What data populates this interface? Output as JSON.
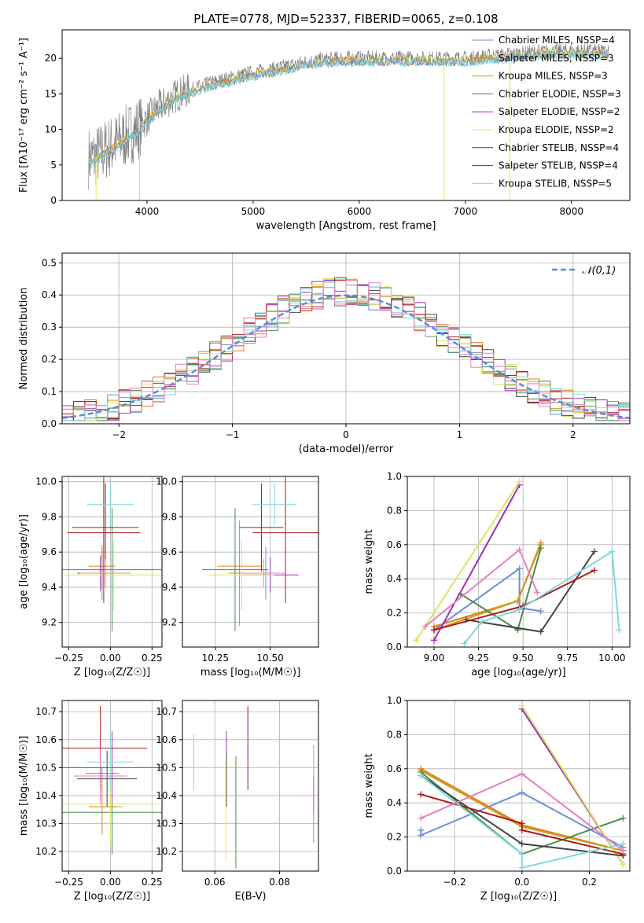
{
  "figure": {
    "title": "PLATE=0778, MJD=52337, FIBERID=0065, z=0.108"
  },
  "colors": {
    "Chabrier MILES": "#6b8ed6",
    "Salpeter MILES": "#e67e22",
    "Kroupa MILES": "#c8a01e",
    "Chabrier ELODIE": "#4a8a4a",
    "Salpeter ELODIE": "#9b30c0",
    "Kroupa ELODIE": "#d9e85a",
    "Chabrier STELIB": "#444444",
    "Salpeter STELIB": "#b01818",
    "Kroupa STELIB": "#7fd8dc",
    "data": "#808080",
    "pink": "#e77fbf",
    "gauss": "#5b8bd6"
  },
  "chart_data": [
    {
      "id": "spectrum",
      "type": "line",
      "xlabel": "wavelength [Angstrom, rest frame]",
      "ylabel": "Flux [fλ10⁻¹⁷ erg cm⁻² s⁻¹ A⁻¹]",
      "xlim": [
        3200,
        8550
      ],
      "ylim": [
        0,
        24
      ],
      "xticks": [
        "4000",
        "5000",
        "6000",
        "7000",
        "8000"
      ],
      "yticks": [
        "0",
        "5",
        "10",
        "15",
        "20"
      ],
      "legend": [
        "Chabrier MILES, NSSP=4",
        "Salpeter MILES, NSSP=3",
        "Kroupa MILES, NSSP=3",
        "Chabrier ELODIE, NSSP=3",
        "Salpeter ELODIE, NSSP=2",
        "Kroupa ELODIE, NSSP=2",
        "Chabrier STELIB, NSSP=4",
        "Salpeter STELIB, NSSP=4",
        "Kroupa STELIB, NSSP=5"
      ],
      "legend_placement": "right",
      "continuum": {
        "x": [
          3500,
          3700,
          3900,
          4100,
          4300,
          4600,
          5000,
          5200,
          5500,
          5800,
          6000,
          6300,
          6600,
          7000,
          7400,
          7800,
          8200,
          8350
        ],
        "y": [
          6,
          8,
          10,
          13,
          15,
          16.5,
          18,
          18.5,
          19.5,
          20,
          20,
          20,
          20,
          20,
          20.5,
          21,
          21,
          21
        ]
      }
    },
    {
      "id": "residuals",
      "type": "histogram",
      "xlabel": "(data-model)/error",
      "ylabel": "Normed distribution",
      "xlim": [
        -2.5,
        2.5
      ],
      "ylim": [
        0,
        0.53
      ],
      "xticks": [
        "−2",
        "−1",
        "0",
        "1",
        "2"
      ],
      "yticks": [
        "0.0",
        "0.1",
        "0.2",
        "0.3",
        "0.4",
        "0.5"
      ],
      "legend": [
        "𝒩(0,1)"
      ],
      "legend_placement": "top-right",
      "gaussian": {
        "mu": 0,
        "sigma": 1
      }
    },
    {
      "id": "age_vs_Z",
      "type": "errorbar",
      "xlabel": "Z [log₁₀(Z/Z☉)]",
      "ylabel": "age  [log₁₀(age/yr)]",
      "xlim": [
        -0.29,
        0.31
      ],
      "ylim": [
        9.06,
        10.03
      ],
      "xticks": [
        "−0.25",
        "0.00",
        "0.25"
      ],
      "yticks": [
        "9.2",
        "9.4",
        "9.6",
        "9.8",
        "10.0"
      ],
      "points": [
        {
          "model": "Chabrier MILES",
          "x": -0.05,
          "xerr": 0.1,
          "y": 9.48,
          "yerr": 0.15
        },
        {
          "model": "Salpeter MILES",
          "x": -0.05,
          "xerr": 0.08,
          "y": 9.52,
          "yerr": 0.12
        },
        {
          "model": "Kroupa MILES",
          "x": 0.01,
          "xerr": 0.06,
          "y": 9.48,
          "yerr": 0.3
        },
        {
          "model": "Chabrier ELODIE",
          "x": 0.01,
          "xerr": 0.3,
          "y": 9.5,
          "yerr": 0.35
        },
        {
          "model": "Salpeter ELODIE",
          "x": -0.06,
          "xerr": 0.14,
          "y": 9.48,
          "yerr": 0.1
        },
        {
          "model": "Kroupa ELODIE",
          "x": 0.02,
          "xerr": 0.3,
          "y": 9.47,
          "yerr": 0.2
        },
        {
          "model": "Chabrier STELIB",
          "x": -0.03,
          "xerr": 0.2,
          "y": 9.74,
          "yerr": 0.25
        },
        {
          "model": "Salpeter STELIB",
          "x": -0.04,
          "xerr": 0.22,
          "y": 9.71,
          "yerr": 0.4
        },
        {
          "model": "Kroupa STELIB",
          "x": 0.0,
          "xerr": 0.14,
          "y": 9.87,
          "yerr": 0.12
        },
        {
          "model": "pink",
          "x": -0.03,
          "xerr": 0.15,
          "y": 9.48,
          "yerr": 0.08
        }
      ]
    },
    {
      "id": "age_vs_mass",
      "type": "errorbar",
      "xlabel": "mass [log₁₀(M/M☉)]",
      "ylabel": "",
      "xlim": [
        10.1,
        10.72
      ],
      "ylim": [
        9.06,
        10.03
      ],
      "xticks": [
        "10.25",
        "10.50"
      ],
      "yticks": [
        "9.2",
        "9.4",
        "9.6",
        "9.8",
        "10.0"
      ],
      "points": [
        {
          "model": "Chabrier MILES",
          "x": 10.48,
          "xerr": 0.02,
          "y": 9.48,
          "yerr": 0.15
        },
        {
          "model": "Salpeter MILES",
          "x": 10.36,
          "xerr": 0.1,
          "y": 9.52,
          "yerr": 0.12
        },
        {
          "model": "Kroupa MILES",
          "x": 10.36,
          "xerr": 0.05,
          "y": 9.48,
          "yerr": 0.3
        },
        {
          "model": "Chabrier ELODIE",
          "x": 10.34,
          "xerr": 0.15,
          "y": 9.5,
          "yerr": 0.35
        },
        {
          "model": "Salpeter ELODIE",
          "x": 10.5,
          "xerr": 0.13,
          "y": 9.47,
          "yerr": 0.1
        },
        {
          "model": "Kroupa ELODIE",
          "x": 10.37,
          "xerr": 0.15,
          "y": 9.47,
          "yerr": 0.2
        },
        {
          "model": "Chabrier STELIB",
          "x": 10.46,
          "xerr": 0.1,
          "y": 9.74,
          "yerr": 0.25
        },
        {
          "model": "Salpeter STELIB",
          "x": 10.57,
          "xerr": 0.15,
          "y": 9.71,
          "yerr": 0.4
        },
        {
          "model": "Kroupa STELIB",
          "x": 10.52,
          "xerr": 0.1,
          "y": 9.87,
          "yerr": 0.12
        },
        {
          "model": "pink",
          "x": 10.47,
          "xerr": 0.1,
          "y": 9.48,
          "yerr": 0.08
        }
      ]
    },
    {
      "id": "weight_vs_age",
      "type": "line",
      "xlabel": "age  [log₁₀(age/yr)]",
      "ylabel": "mass weight",
      "xlim": [
        8.85,
        10.1
      ],
      "ylim": [
        0,
        1.0
      ],
      "xticks": [
        "9.00",
        "9.25",
        "9.50",
        "9.75",
        "10.00"
      ],
      "yticks": [
        "0.0",
        "0.2",
        "0.4",
        "0.6",
        "0.8",
        "1.0"
      ],
      "grid": true,
      "series": [
        {
          "model": "Chabrier MILES",
          "x": [
            9.0,
            9.48,
            9.48,
            9.6
          ],
          "y": [
            0.1,
            0.46,
            0.23,
            0.21
          ]
        },
        {
          "model": "Salpeter MILES",
          "x": [
            9.0,
            9.47,
            9.6
          ],
          "y": [
            0.12,
            0.27,
            0.61
          ]
        },
        {
          "model": "Kroupa MILES",
          "x": [
            9.0,
            9.47,
            9.6
          ],
          "y": [
            0.1,
            0.27,
            0.6
          ]
        },
        {
          "model": "Chabrier ELODIE",
          "x": [
            9.15,
            9.47,
            9.6
          ],
          "y": [
            0.31,
            0.1,
            0.58
          ]
        },
        {
          "model": "Salpeter ELODIE",
          "x": [
            9.0,
            9.48
          ],
          "y": [
            0.04,
            0.95
          ]
        },
        {
          "model": "Kroupa ELODIE",
          "x": [
            8.9,
            9.48
          ],
          "y": [
            0.04,
            0.97
          ]
        },
        {
          "model": "Chabrier STELIB",
          "x": [
            9.18,
            9.6,
            9.9
          ],
          "y": [
            0.16,
            0.09,
            0.56
          ]
        },
        {
          "model": "Salpeter STELIB",
          "x": [
            9.0,
            9.5,
            9.9
          ],
          "y": [
            0.1,
            0.24,
            0.45
          ]
        },
        {
          "model": "Kroupa STELIB",
          "x": [
            9.17,
            9.27,
            9.48,
            10.0,
            10.04
          ],
          "y": [
            0.02,
            0.15,
            0.22,
            0.56,
            0.1
          ]
        },
        {
          "model": "pink",
          "x": [
            8.95,
            9.48,
            9.58
          ],
          "y": [
            0.12,
            0.57,
            0.32
          ]
        }
      ]
    },
    {
      "id": "mass_vs_Z",
      "type": "errorbar",
      "xlabel": "Z [log₁₀(Z/Z☉)]",
      "ylabel": "mass [log₁₀(M/M☉)]",
      "xlim": [
        -0.29,
        0.31
      ],
      "ylim": [
        10.13,
        10.74
      ],
      "xticks": [
        "−0.25",
        "0.00",
        "0.25"
      ],
      "yticks": [
        "10.2",
        "10.3",
        "10.4",
        "10.5",
        "10.6",
        "10.7"
      ],
      "points": [
        {
          "model": "Chabrier MILES",
          "x": -0.05,
          "xerr": 0.1,
          "y": 10.48,
          "yerr": 0.02
        },
        {
          "model": "Salpeter MILES",
          "x": -0.05,
          "xerr": 0.08,
          "y": 10.36,
          "yerr": 0.1
        },
        {
          "model": "Kroupa MILES",
          "x": 0.01,
          "xerr": 0.06,
          "y": 10.36,
          "yerr": 0.05
        },
        {
          "model": "Chabrier ELODIE",
          "x": 0.01,
          "xerr": 0.3,
          "y": 10.34,
          "yerr": 0.15
        },
        {
          "model": "Salpeter ELODIE",
          "x": 0.01,
          "xerr": 0.3,
          "y": 10.5,
          "yerr": 0.13
        },
        {
          "model": "Kroupa ELODIE",
          "x": 0.0,
          "xerr": 0.3,
          "y": 10.37,
          "yerr": 0.15
        },
        {
          "model": "Chabrier STELIB",
          "x": -0.02,
          "xerr": 0.18,
          "y": 10.46,
          "yerr": 0.1
        },
        {
          "model": "Salpeter STELIB",
          "x": -0.06,
          "xerr": 0.28,
          "y": 10.57,
          "yerr": 0.15
        },
        {
          "model": "Kroupa STELIB",
          "x": 0.0,
          "xerr": 0.14,
          "y": 10.52,
          "yerr": 0.1
        },
        {
          "model": "pink",
          "x": -0.06,
          "xerr": 0.16,
          "y": 10.47,
          "yerr": 0.1
        }
      ]
    },
    {
      "id": "mass_vs_EBV",
      "type": "errorbar",
      "xlabel": "E(B-V)",
      "ylabel": "",
      "xlim": [
        0.05,
        0.092
      ],
      "ylim": [
        10.13,
        10.74
      ],
      "xticks": [
        "0.06",
        "0.08"
      ],
      "yticks": [
        "10.2",
        "10.3",
        "10.4",
        "10.5",
        "10.6",
        "10.7"
      ],
      "points": [
        {
          "model": "Kroupa STELIB",
          "x": 0.0535,
          "y": 10.52,
          "yerr": 0.1
        },
        {
          "model": "Salpeter ELODIE",
          "x": 0.0636,
          "y": 10.5,
          "yerr": 0.13
        },
        {
          "model": "Chabrier STELIB",
          "x": 0.0636,
          "y": 10.46,
          "yerr": 0.1
        },
        {
          "model": "Kroupa ELODIE",
          "x": 0.0634,
          "y": 10.35,
          "yerr": 0.18
        },
        {
          "model": "Chabrier ELODIE",
          "x": 0.0665,
          "y": 10.34,
          "yerr": 0.2
        },
        {
          "model": "Salpeter STELIB",
          "x": 0.0702,
          "y": 10.57,
          "yerr": 0.15
        },
        {
          "model": "pink",
          "x": 0.0905,
          "y": 10.46,
          "yerr": 0.12
        },
        {
          "model": "Salpeter MILES",
          "x": 0.0905,
          "y": 10.35,
          "yerr": 0.12
        }
      ]
    },
    {
      "id": "weight_vs_Z",
      "type": "line",
      "xlabel": "Z [log₁₀(Z/Z☉)]",
      "ylabel": "mass weight",
      "xlim": [
        -0.34,
        0.32
      ],
      "ylim": [
        0,
        1.0
      ],
      "xticks": [
        "−0.2",
        "0.0",
        "0.2"
      ],
      "yticks": [
        "0.0",
        "0.2",
        "0.4",
        "0.6",
        "0.8",
        "1.0"
      ],
      "grid": true,
      "series": [
        {
          "model": "Chabrier MILES",
          "x": [
            -0.3,
            -0.3,
            0.0,
            0.3
          ],
          "y": [
            0.24,
            0.21,
            0.46,
            0.14
          ]
        },
        {
          "model": "Salpeter MILES",
          "x": [
            -0.3,
            0.0,
            0.3
          ],
          "y": [
            0.6,
            0.27,
            0.12
          ]
        },
        {
          "model": "Kroupa MILES",
          "x": [
            -0.3,
            0.0,
            0.3
          ],
          "y": [
            0.59,
            0.26,
            0.12
          ]
        },
        {
          "model": "Chabrier ELODIE",
          "x": [
            -0.3,
            0.0,
            0.3
          ],
          "y": [
            0.58,
            0.1,
            0.31
          ]
        },
        {
          "model": "Salpeter ELODIE",
          "x": [
            0.0,
            0.3
          ],
          "y": [
            0.95,
            0.04
          ]
        },
        {
          "model": "Kroupa ELODIE",
          "x": [
            0.0,
            0.3
          ],
          "y": [
            0.97,
            0.04
          ]
        },
        {
          "model": "Chabrier STELIB",
          "x": [
            -0.3,
            0.0,
            0.3
          ],
          "y": [
            0.56,
            0.16,
            0.09
          ]
        },
        {
          "model": "Salpeter STELIB",
          "x": [
            -0.3,
            0.0,
            0.0,
            0.3
          ],
          "y": [
            0.45,
            0.28,
            0.24,
            0.1
          ]
        },
        {
          "model": "Kroupa STELIB",
          "x": [
            -0.3,
            0.0,
            0.0,
            0.3
          ],
          "y": [
            0.56,
            0.1,
            0.02,
            0.16
          ]
        },
        {
          "model": "pink",
          "x": [
            -0.3,
            0.0,
            0.3
          ],
          "y": [
            0.31,
            0.57,
            0.12
          ]
        }
      ]
    }
  ]
}
